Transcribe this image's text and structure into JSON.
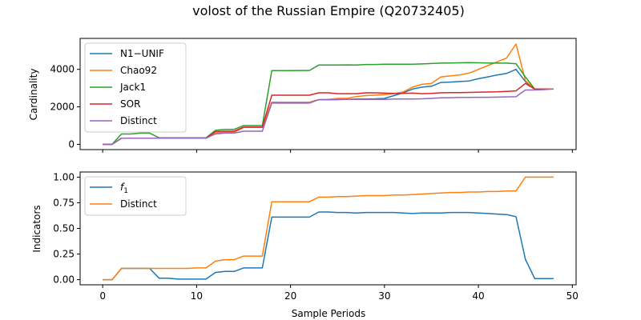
{
  "figure": {
    "title": "volost of the Russian Empire (Q20732405)"
  },
  "chart_data": [
    {
      "type": "line",
      "panel": "top",
      "xlabel": "",
      "ylabel": "Cardinality",
      "xlim": [
        -2.4,
        50.4
      ],
      "ylim": [
        -280,
        5650
      ],
      "xticks": [
        0,
        10,
        20,
        30,
        40,
        50
      ],
      "yticks": [
        0,
        2000,
        4000
      ],
      "xtick_labels_visible": false,
      "grid": false,
      "legend": "upper-left",
      "series": [
        {
          "name": "N1−UNIF",
          "color": "#1f77b4",
          "x": [
            0,
            1,
            2,
            3,
            4,
            5,
            6,
            7,
            8,
            9,
            10,
            11,
            12,
            13,
            14,
            15,
            16,
            17,
            18,
            19,
            20,
            21,
            22,
            23,
            24,
            25,
            26,
            27,
            28,
            29,
            30,
            31,
            32,
            33,
            34,
            35,
            36,
            37,
            38,
            39,
            40,
            41,
            42,
            43,
            44,
            45,
            46,
            47,
            48
          ],
          "y": [
            0,
            0,
            330,
            330,
            330,
            330,
            330,
            330,
            330,
            330,
            330,
            330,
            600,
            650,
            650,
            900,
            900,
            900,
            2250,
            2250,
            2250,
            2250,
            2250,
            2380,
            2380,
            2400,
            2400,
            2420,
            2420,
            2430,
            2450,
            2600,
            2750,
            2950,
            3050,
            3100,
            3300,
            3320,
            3350,
            3380,
            3500,
            3600,
            3700,
            3780,
            4000,
            3350,
            2950,
            2950,
            2950
          ]
        },
        {
          "name": "Chao92",
          "color": "#ff7f0e",
          "x": [
            0,
            1,
            2,
            3,
            4,
            5,
            6,
            7,
            8,
            9,
            10,
            11,
            12,
            13,
            14,
            15,
            16,
            17,
            18,
            19,
            20,
            21,
            22,
            23,
            24,
            25,
            26,
            27,
            28,
            29,
            30,
            31,
            32,
            33,
            34,
            35,
            36,
            37,
            38,
            39,
            40,
            41,
            42,
            43,
            44,
            45,
            46,
            47,
            48
          ],
          "y": [
            0,
            0,
            330,
            330,
            330,
            330,
            330,
            330,
            330,
            330,
            330,
            330,
            600,
            650,
            650,
            900,
            900,
            900,
            2250,
            2250,
            2250,
            2250,
            2250,
            2380,
            2400,
            2450,
            2450,
            2550,
            2600,
            2620,
            2650,
            2700,
            2800,
            3050,
            3200,
            3250,
            3600,
            3650,
            3700,
            3800,
            4000,
            4200,
            4400,
            4600,
            5350,
            3400,
            2950,
            2950,
            2950
          ]
        },
        {
          "name": "Jack1",
          "color": "#2ca02c",
          "x": [
            0,
            1,
            2,
            3,
            4,
            5,
            6,
            7,
            8,
            9,
            10,
            11,
            12,
            13,
            14,
            15,
            16,
            17,
            18,
            19,
            20,
            21,
            22,
            23,
            24,
            25,
            26,
            27,
            28,
            29,
            30,
            31,
            32,
            33,
            34,
            35,
            36,
            37,
            38,
            39,
            40,
            41,
            42,
            43,
            44,
            45,
            46,
            47,
            48
          ],
          "y": [
            0,
            0,
            550,
            550,
            600,
            600,
            350,
            350,
            350,
            350,
            350,
            350,
            750,
            800,
            800,
            1000,
            1000,
            1000,
            3930,
            3930,
            3930,
            3940,
            3940,
            4230,
            4230,
            4230,
            4240,
            4230,
            4260,
            4260,
            4270,
            4270,
            4270,
            4270,
            4290,
            4310,
            4330,
            4340,
            4350,
            4360,
            4350,
            4340,
            4330,
            4330,
            4300,
            3600,
            2950,
            2950,
            2950
          ]
        },
        {
          "name": "SOR",
          "color": "#d62728",
          "x": [
            0,
            1,
            2,
            3,
            4,
            5,
            6,
            7,
            8,
            9,
            10,
            11,
            12,
            13,
            14,
            15,
            16,
            17,
            18,
            19,
            20,
            21,
            22,
            23,
            24,
            25,
            26,
            27,
            28,
            29,
            30,
            31,
            32,
            33,
            34,
            35,
            36,
            37,
            38,
            39,
            40,
            41,
            42,
            43,
            44,
            45,
            46,
            47,
            48
          ],
          "y": [
            0,
            0,
            330,
            330,
            330,
            330,
            330,
            330,
            330,
            330,
            330,
            330,
            680,
            700,
            700,
            920,
            920,
            920,
            2620,
            2620,
            2620,
            2620,
            2620,
            2750,
            2750,
            2700,
            2700,
            2700,
            2750,
            2750,
            2730,
            2720,
            2720,
            2730,
            2700,
            2720,
            2750,
            2760,
            2760,
            2770,
            2780,
            2790,
            2800,
            2820,
            2850,
            3250,
            2950,
            2950,
            2950
          ]
        },
        {
          "name": "Distinct",
          "color": "#9467bd",
          "x": [
            0,
            1,
            2,
            3,
            4,
            5,
            6,
            7,
            8,
            9,
            10,
            11,
            12,
            13,
            14,
            15,
            16,
            17,
            18,
            19,
            20,
            21,
            22,
            23,
            24,
            25,
            26,
            27,
            28,
            29,
            30,
            31,
            32,
            33,
            34,
            35,
            36,
            37,
            38,
            39,
            40,
            41,
            42,
            43,
            44,
            45,
            46,
            47,
            48
          ],
          "y": [
            0,
            0,
            330,
            330,
            330,
            330,
            330,
            330,
            330,
            330,
            330,
            330,
            550,
            600,
            600,
            700,
            700,
            700,
            2200,
            2200,
            2200,
            2200,
            2200,
            2380,
            2380,
            2380,
            2400,
            2400,
            2400,
            2400,
            2400,
            2420,
            2420,
            2420,
            2430,
            2450,
            2480,
            2490,
            2500,
            2500,
            2510,
            2510,
            2520,
            2530,
            2540,
            2900,
            2900,
            2920,
            2950
          ]
        }
      ]
    },
    {
      "type": "line",
      "panel": "bottom",
      "xlabel": "Sample Periods",
      "ylabel": "Indicators",
      "xlim": [
        -2.4,
        50.4
      ],
      "ylim": [
        -0.05,
        1.05
      ],
      "xticks": [
        0,
        10,
        20,
        30,
        40,
        50
      ],
      "xtick_labels": [
        "0",
        "10",
        "20",
        "30",
        "40",
        "50"
      ],
      "yticks": [
        0.0,
        0.25,
        0.5,
        0.75,
        1.0
      ],
      "ytick_labels": [
        "0.00",
        "0.25",
        "0.50",
        "0.75",
        "1.00"
      ],
      "grid": false,
      "legend": "upper-left",
      "series": [
        {
          "name": "f1",
          "name_base": "f",
          "name_sub": "1",
          "color": "#1f77b4",
          "x": [
            0,
            1,
            2,
            3,
            4,
            5,
            6,
            7,
            8,
            9,
            10,
            11,
            12,
            13,
            14,
            15,
            16,
            17,
            18,
            19,
            20,
            21,
            22,
            23,
            24,
            25,
            26,
            27,
            28,
            29,
            30,
            31,
            32,
            33,
            34,
            35,
            36,
            37,
            38,
            39,
            40,
            41,
            42,
            43,
            44,
            45,
            46,
            47,
            48
          ],
          "y": [
            0,
            0,
            0.11,
            0.11,
            0.11,
            0.11,
            0.015,
            0.015,
            0.005,
            0.005,
            0.005,
            0.005,
            0.07,
            0.08,
            0.08,
            0.115,
            0.115,
            0.115,
            0.61,
            0.61,
            0.61,
            0.61,
            0.61,
            0.66,
            0.66,
            0.655,
            0.655,
            0.65,
            0.655,
            0.655,
            0.655,
            0.655,
            0.65,
            0.645,
            0.65,
            0.65,
            0.65,
            0.655,
            0.655,
            0.655,
            0.65,
            0.645,
            0.64,
            0.635,
            0.615,
            0.2,
            0.01,
            0.01,
            0.01
          ]
        },
        {
          "name": "Distinct",
          "color": "#ff7f0e",
          "x": [
            0,
            1,
            2,
            3,
            4,
            5,
            6,
            7,
            8,
            9,
            10,
            11,
            12,
            13,
            14,
            15,
            16,
            17,
            18,
            19,
            20,
            21,
            22,
            23,
            24,
            25,
            26,
            27,
            28,
            29,
            30,
            31,
            32,
            33,
            34,
            35,
            36,
            37,
            38,
            39,
            40,
            41,
            42,
            43,
            44,
            45,
            46,
            47,
            48
          ],
          "y": [
            0,
            0,
            0.11,
            0.11,
            0.11,
            0.11,
            0.11,
            0.11,
            0.11,
            0.11,
            0.115,
            0.115,
            0.18,
            0.195,
            0.195,
            0.23,
            0.23,
            0.23,
            0.76,
            0.76,
            0.76,
            0.76,
            0.76,
            0.805,
            0.805,
            0.81,
            0.81,
            0.815,
            0.82,
            0.82,
            0.82,
            0.825,
            0.825,
            0.83,
            0.835,
            0.84,
            0.845,
            0.85,
            0.85,
            0.855,
            0.855,
            0.86,
            0.86,
            0.865,
            0.865,
            1.0,
            1.0,
            1.0,
            1.0
          ]
        }
      ]
    }
  ]
}
